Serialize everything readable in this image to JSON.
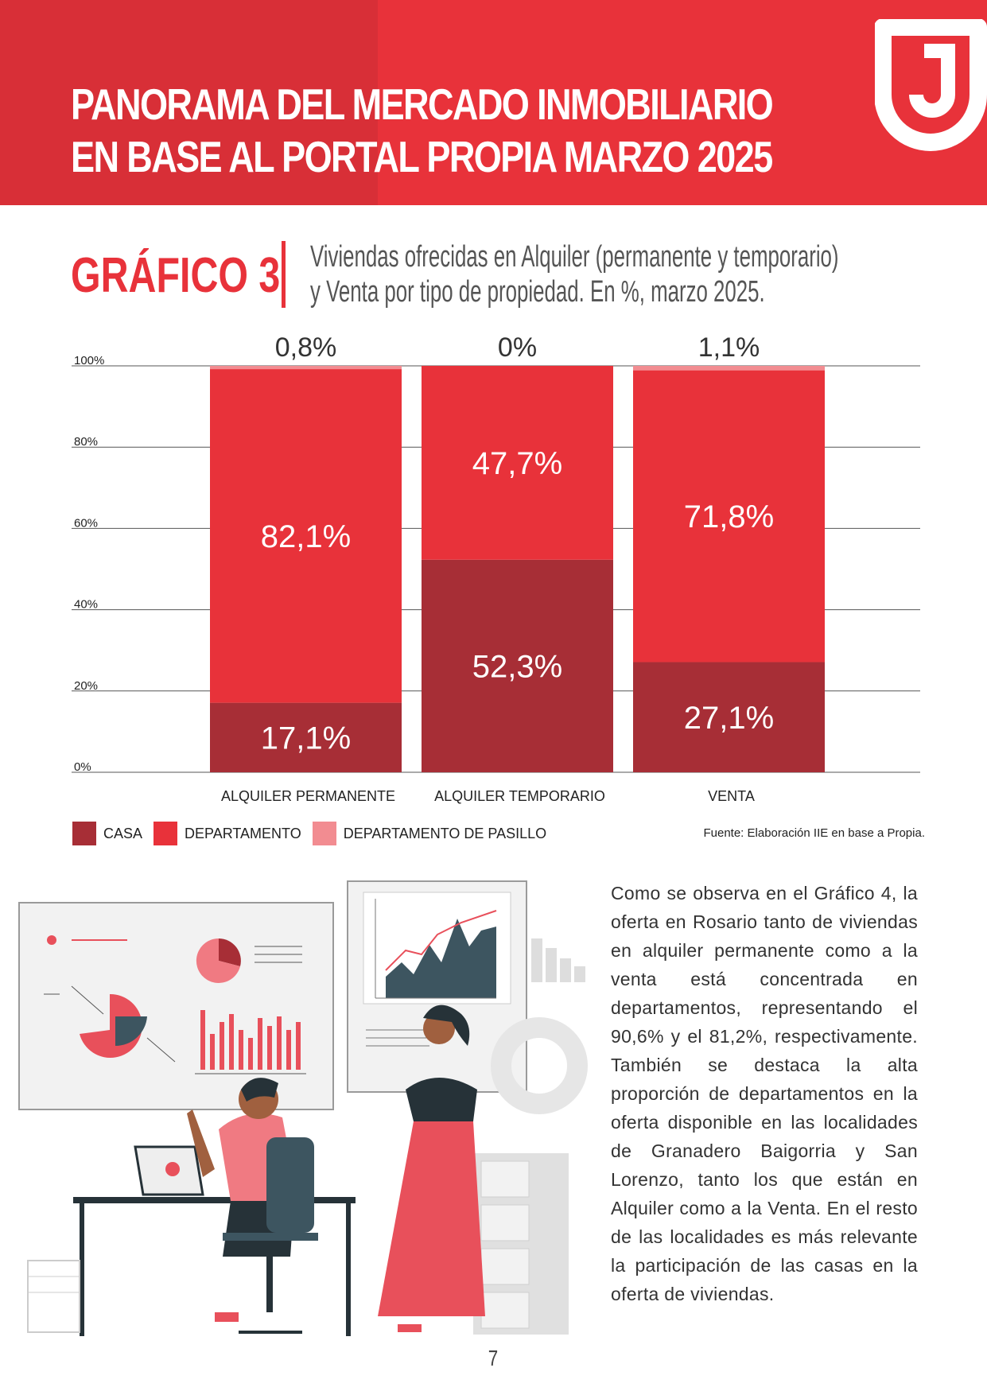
{
  "header": {
    "title_line1": "PANORAMA DEL MERCADO INMOBILIARIO",
    "title_line2": "EN BASE AL PORTAL PROPIA MARZO 2025"
  },
  "colors": {
    "casa": "#a72e36",
    "departamento": "#e8323a",
    "departamento_de_pasillo": "#f28c91",
    "header_red": "#e8323a"
  },
  "chart_heading": {
    "label": "GRÁFICO 3",
    "subtitle_line1": "Viviendas ofrecidas en Alquiler (permanente y temporario)",
    "subtitle_line2": "y Venta por tipo de propiedad. En %, marzo 2025."
  },
  "chart_data": {
    "type": "bar",
    "stacked": true,
    "categories": [
      "ALQUILER PERMANENTE",
      "ALQUILER TEMPORARIO",
      "VENTA"
    ],
    "series": [
      {
        "name": "CASA",
        "values": [
          17.1,
          52.3,
          27.1
        ],
        "labels": [
          "17,1%",
          "52,3%",
          "27,1%"
        ]
      },
      {
        "name": "DEPARTAMENTO",
        "values": [
          82.1,
          47.7,
          71.8
        ],
        "labels": [
          "82,1%",
          "47,7%",
          "71,8%"
        ]
      },
      {
        "name": "DEPARTAMENTO DE PASILLO",
        "values": [
          0.8,
          0,
          1.1
        ],
        "labels": [
          "0,8%",
          "0%",
          "1,1%"
        ]
      }
    ],
    "ylim": [
      0,
      100
    ],
    "yticks": [
      "0%",
      "20%",
      "40%",
      "60%",
      "80%",
      "100%"
    ],
    "grid": true,
    "legend_position": "bottom-left",
    "source": "Fuente: Elaboración IIE en base a Propia."
  },
  "body_text": "Como se observa en el Gráfico 4, la oferta en Rosario tanto de viviendas en alquiler permanente como a la venta está concentrada en departamentos, representando el 90,6% y el 81,2%, respectivamente. También se destaca la alta proporción de departamentos en la oferta disponible en las localidades de Granadero Baigorria y San Lorenzo, tanto los que están en Alquiler como a la Venta. En el resto de las localidades es más relevante la participación de las casas en la oferta de viviendas.",
  "page_number": "7"
}
